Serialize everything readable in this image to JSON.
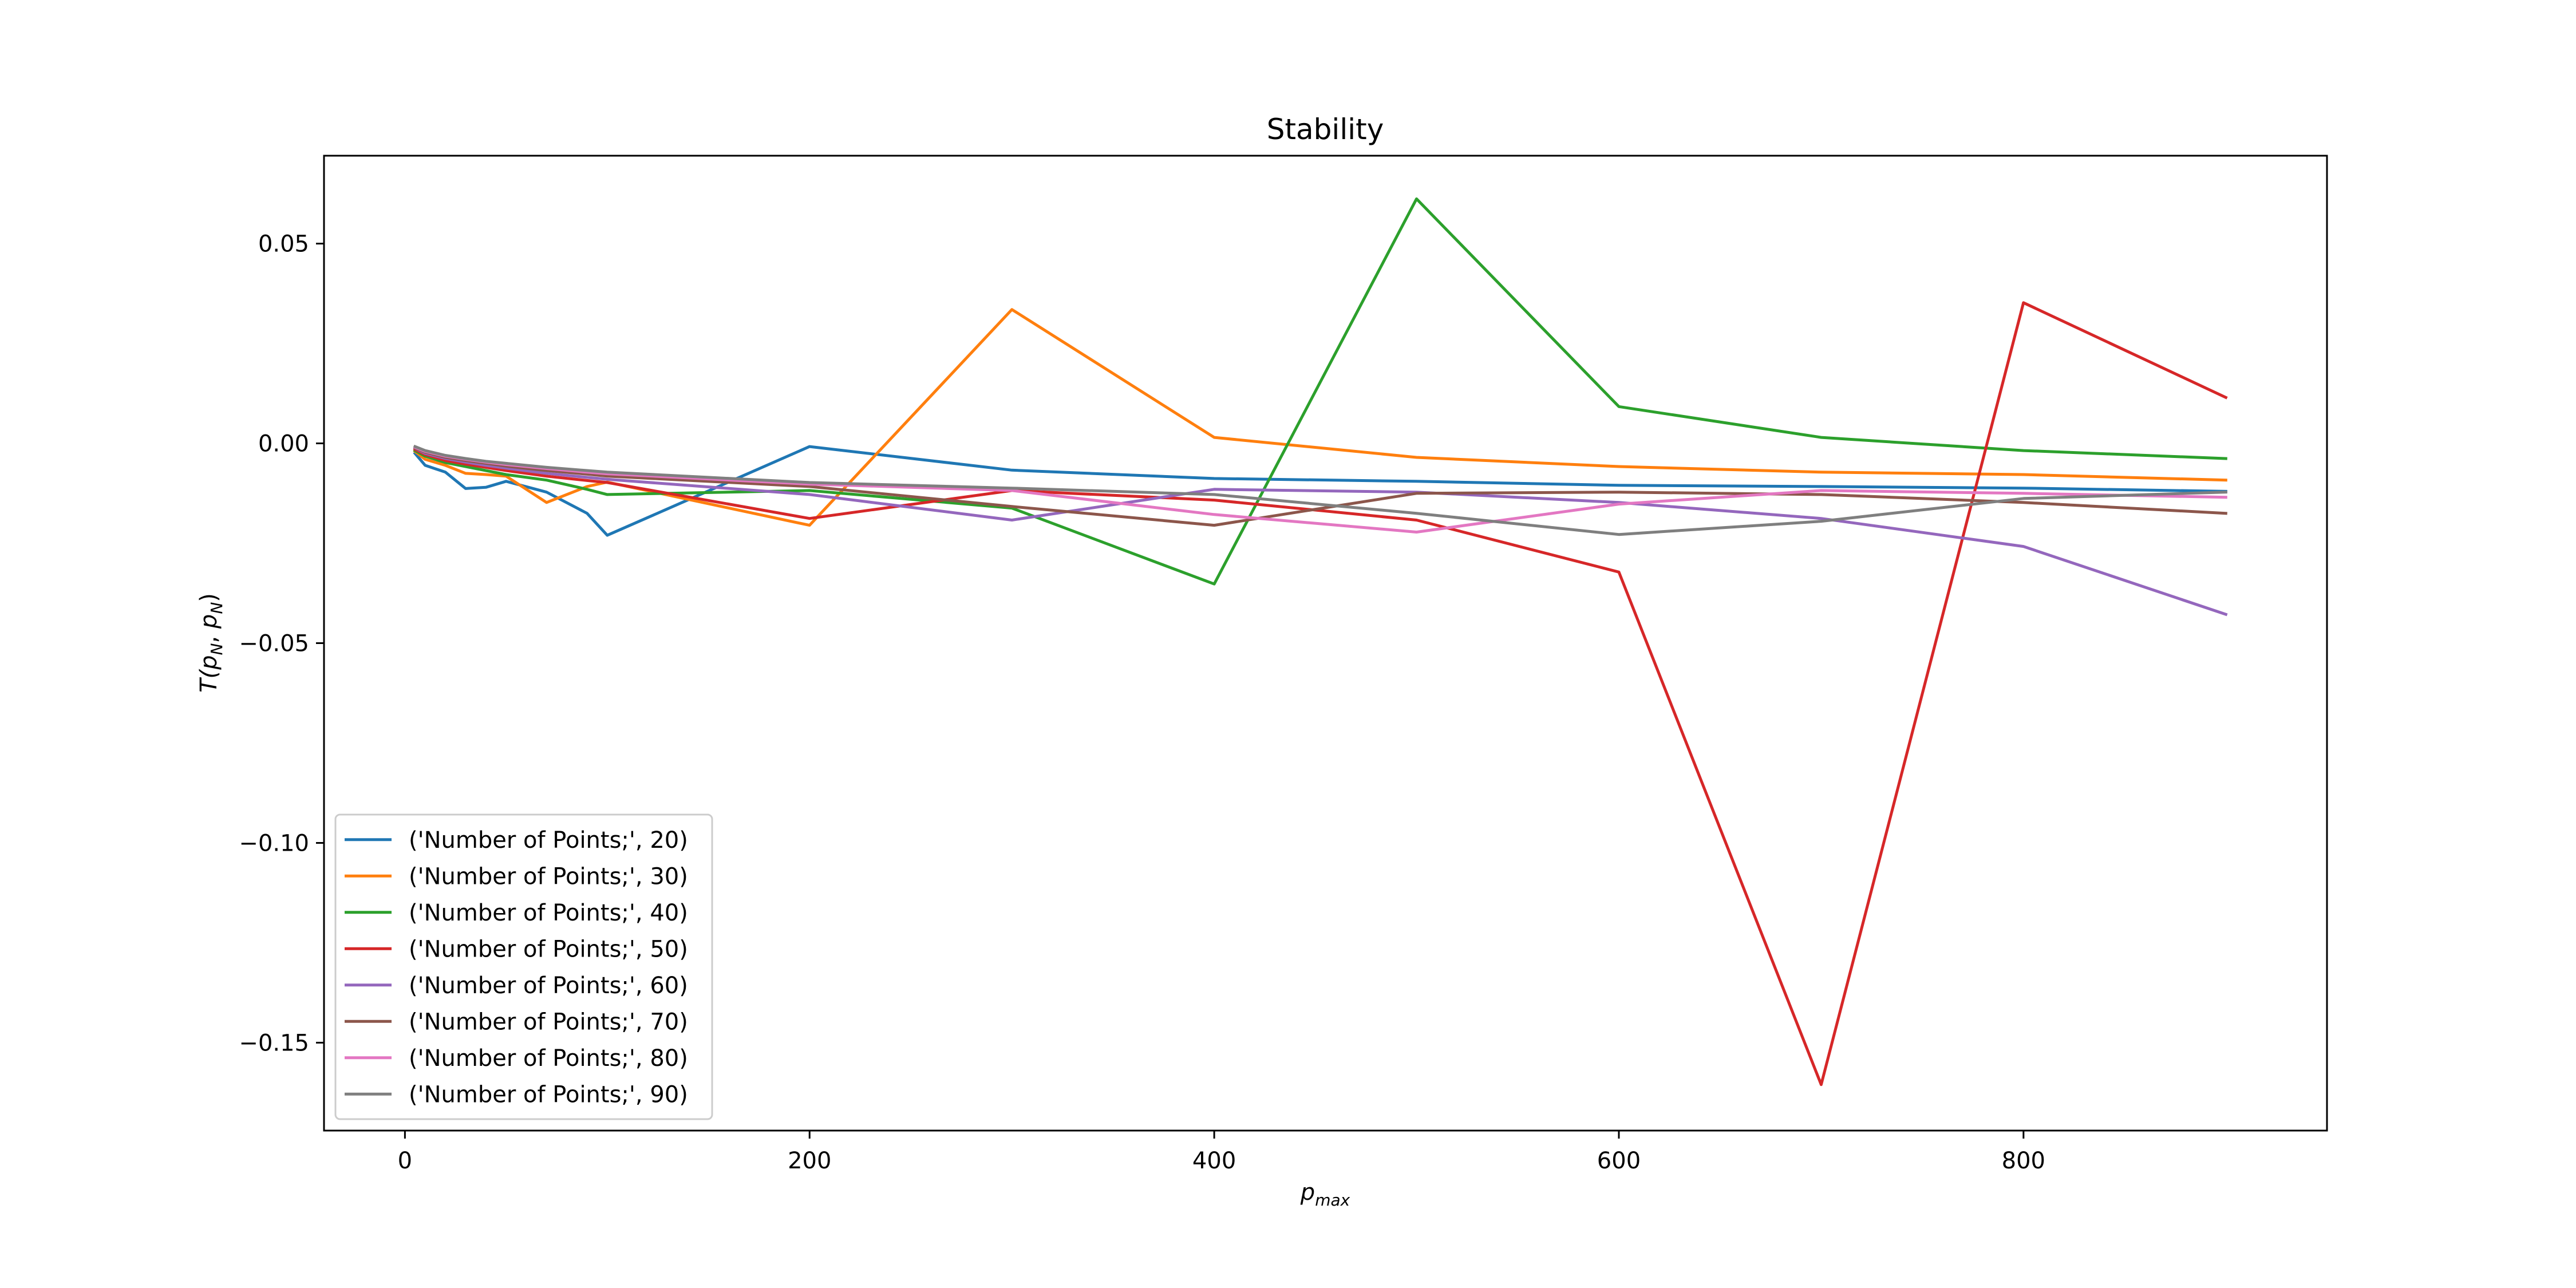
{
  "chart_data": {
    "type": "line",
    "title": "Stability",
    "xlabel": {
      "base": "p",
      "sub": "max"
    },
    "ylabel": {
      "prefix": "T(",
      "p1": "p",
      "sub1": "N",
      "sep": ", ",
      "p2": "p",
      "sub2": "N",
      "suffix": ")"
    },
    "xlim": [
      -40,
      950
    ],
    "ylim": [
      -0.172,
      0.072
    ],
    "xticks": [
      0,
      200,
      400,
      600,
      800
    ],
    "xtick_labels": [
      "0",
      "200",
      "400",
      "600",
      "800"
    ],
    "yticks": [
      0.05,
      0.0,
      -0.05,
      -0.1,
      -0.15
    ],
    "ytick_labels": [
      "0.05",
      "0.00",
      "−0.05",
      "−0.10",
      "−0.15"
    ],
    "grid": false,
    "legend_position": "lower-left",
    "series": [
      {
        "name": "('Number of Points;', 20)",
        "color": "#1f77b4",
        "x": [
          5,
          10,
          20,
          30,
          40,
          50,
          70,
          90,
          100,
          200,
          300,
          400,
          500,
          600,
          700,
          800,
          900
        ],
        "y": [
          -0.0025,
          -0.0055,
          -0.0072,
          -0.0113,
          -0.011,
          -0.0095,
          -0.0122,
          -0.0175,
          -0.023,
          -0.0008,
          -0.0067,
          -0.0088,
          -0.0095,
          -0.0105,
          -0.0108,
          -0.0112,
          -0.012
        ]
      },
      {
        "name": "('Number of Points;', 30)",
        "color": "#ff7f0e",
        "x": [
          5,
          10,
          20,
          30,
          40,
          50,
          70,
          90,
          100,
          200,
          300,
          400,
          500,
          600,
          700,
          800,
          900
        ],
        "y": [
          -0.002,
          -0.004,
          -0.0055,
          -0.0075,
          -0.0078,
          -0.0082,
          -0.0148,
          -0.0108,
          -0.0097,
          -0.0205,
          0.0335,
          0.0015,
          -0.0035,
          -0.0058,
          -0.0072,
          -0.0078,
          -0.0092
        ]
      },
      {
        "name": "('Number of Points;', 40)",
        "color": "#2ca02c",
        "x": [
          5,
          10,
          20,
          30,
          40,
          50,
          70,
          90,
          100,
          200,
          300,
          400,
          500,
          600,
          700,
          800,
          900
        ],
        "y": [
          -0.0018,
          -0.0032,
          -0.0048,
          -0.0058,
          -0.0068,
          -0.0078,
          -0.0092,
          -0.0115,
          -0.0128,
          -0.0118,
          -0.0162,
          -0.0352,
          0.0612,
          0.0092,
          0.0015,
          -0.0018,
          -0.0038
        ]
      },
      {
        "name": "('Number of Points;', 50)",
        "color": "#d62728",
        "x": [
          5,
          10,
          20,
          30,
          40,
          50,
          70,
          90,
          100,
          200,
          300,
          400,
          500,
          600,
          700,
          800,
          900
        ],
        "y": [
          -0.0015,
          -0.0028,
          -0.0043,
          -0.0052,
          -0.006,
          -0.0068,
          -0.0082,
          -0.0093,
          -0.0098,
          -0.0188,
          -0.0118,
          -0.0142,
          -0.0192,
          -0.0322,
          -0.1605,
          0.0352,
          0.0115
        ]
      },
      {
        "name": "('Number of Points;', 60)",
        "color": "#9467bd",
        "x": [
          5,
          10,
          20,
          30,
          40,
          50,
          70,
          90,
          100,
          200,
          300,
          400,
          500,
          600,
          700,
          800,
          900
        ],
        "y": [
          -0.0012,
          -0.0025,
          -0.0038,
          -0.0047,
          -0.0055,
          -0.0062,
          -0.0075,
          -0.0085,
          -0.009,
          -0.0128,
          -0.0192,
          -0.0115,
          -0.0122,
          -0.0148,
          -0.0188,
          -0.0258,
          -0.0428
        ]
      },
      {
        "name": "('Number of Points;', 70)",
        "color": "#8c564b",
        "x": [
          5,
          10,
          20,
          30,
          40,
          50,
          70,
          90,
          100,
          200,
          300,
          400,
          500,
          600,
          700,
          800,
          900
        ],
        "y": [
          -0.0012,
          -0.0022,
          -0.0035,
          -0.0043,
          -0.005,
          -0.0057,
          -0.0068,
          -0.0077,
          -0.0082,
          -0.0108,
          -0.0158,
          -0.0205,
          -0.0125,
          -0.0122,
          -0.0128,
          -0.0148,
          -0.0175
        ]
      },
      {
        "name": "('Number of Points;', 80)",
        "color": "#e377c2",
        "x": [
          5,
          10,
          20,
          30,
          40,
          50,
          70,
          90,
          100,
          200,
          300,
          400,
          500,
          600,
          700,
          800,
          900
        ],
        "y": [
          -0.001,
          -0.002,
          -0.0032,
          -0.004,
          -0.0047,
          -0.0053,
          -0.0063,
          -0.0072,
          -0.0076,
          -0.0102,
          -0.0118,
          -0.0178,
          -0.0222,
          -0.0152,
          -0.0118,
          -0.0125,
          -0.0135
        ]
      },
      {
        "name": "('Number of Points;', 90)",
        "color": "#7f7f7f",
        "x": [
          5,
          10,
          20,
          30,
          40,
          50,
          70,
          90,
          100,
          200,
          300,
          400,
          500,
          600,
          700,
          800,
          900
        ],
        "y": [
          -0.0008,
          -0.0018,
          -0.003,
          -0.0038,
          -0.0045,
          -0.005,
          -0.006,
          -0.0068,
          -0.0072,
          -0.0098,
          -0.0112,
          -0.0128,
          -0.0175,
          -0.0228,
          -0.0195,
          -0.0138,
          -0.0122
        ]
      }
    ]
  }
}
